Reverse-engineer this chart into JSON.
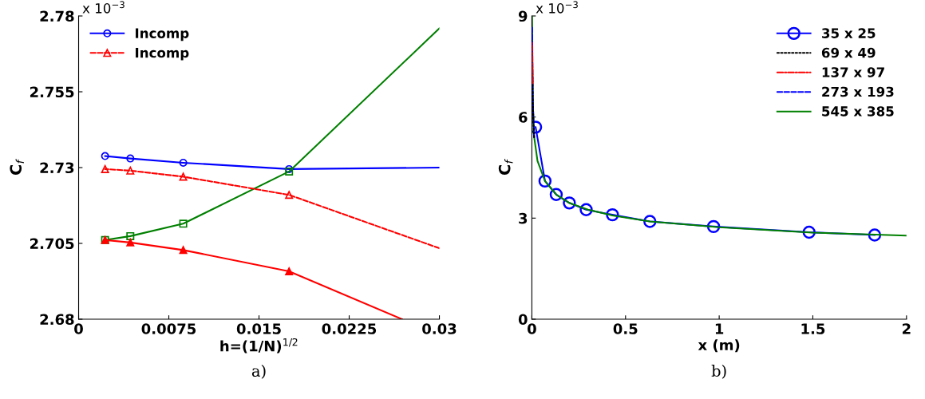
{
  "chart_data": [
    {
      "type": "line",
      "xlabel": "h=(1/N)$^{1/2}$",
      "ylabel": "C$_{f}$",
      "annotations": [
        "x 10$^{−3}$",
        "a)"
      ],
      "xlim": [
        0,
        0.03
      ],
      "xticks": [
        0,
        0.0075,
        0.015,
        0.0225,
        0.03
      ],
      "ylim": [
        2.68,
        2.78
      ],
      "yticks": [
        2.68,
        2.705,
        2.73,
        2.755,
        2.78
      ],
      "grid": false,
      "legend": "top left",
      "series": [
        {
          "name": "Incomp",
          "color": "#0000ff",
          "marker": "circle",
          "line_style": "solid",
          "x": [
            0.0022,
            0.0043,
            0.0087,
            0.0175,
            0.03
          ],
          "values": [
            2.7338,
            2.733,
            2.7316,
            2.7295,
            2.73
          ]
        },
        {
          "name": "Incomp",
          "color": "#ff0000",
          "marker": "triangle",
          "line_style": "dashed",
          "x": [
            0.0022,
            0.0043,
            0.0087,
            0.0175,
            0.03
          ],
          "values": [
            2.7295,
            2.729,
            2.727,
            2.721,
            2.7034
          ]
        },
        {
          "color": "#008000",
          "marker": "square",
          "line_style": "solid",
          "x": [
            0.0022,
            0.0043,
            0.0087,
            0.0175,
            0.03
          ],
          "values": [
            2.7061,
            2.7074,
            2.7115,
            2.7287,
            2.7759
          ]
        },
        {
          "color": "#ff0000",
          "marker": "triangle",
          "line_style": "solid",
          "x": [
            0.0022,
            0.0043,
            0.0087,
            0.0175,
            0.0269
          ],
          "values": [
            2.7061,
            2.7053,
            2.7028,
            2.6958,
            2.68
          ]
        }
      ]
    },
    {
      "type": "line",
      "xlabel": "x (m)",
      "ylabel": "C$_{f}$",
      "annotations": [
        "x 10$^{−3}$",
        "b)"
      ],
      "xlim": [
        0,
        2
      ],
      "xticks": [
        0,
        0.5,
        1,
        1.5,
        2
      ],
      "ylim": [
        0,
        9
      ],
      "yticks": [
        0,
        3,
        6,
        9
      ],
      "grid": false,
      "legend": "top right",
      "series": [
        {
          "name": "35 x 25",
          "color": "#0000ff",
          "marker": "circle",
          "line_style": "solid",
          "x": [
            0.02,
            0.07,
            0.13,
            0.2,
            0.29,
            0.43,
            0.63,
            0.97,
            1.48,
            1.83
          ],
          "values": [
            5.7,
            4.1,
            3.7,
            3.45,
            3.25,
            3.1,
            2.9,
            2.75,
            2.58,
            2.5
          ]
        },
        {
          "name": "69 x 49",
          "color": "#000000",
          "marker": "none",
          "line_style": "dotted",
          "x": [
            0.002,
            0.006,
            0.012
          ],
          "values": [
            7.5,
            6.2,
            5.4
          ]
        },
        {
          "name": "137 x 97",
          "color": "#ff0000",
          "marker": "none",
          "line_style": "dashdot",
          "x": [
            0.001,
            0.004
          ],
          "values": [
            8.2,
            7.0
          ]
        },
        {
          "name": "273 x 193",
          "color": "#0000ff",
          "marker": "none",
          "line_style": "dashed",
          "x": [
            0.001,
            0.005,
            0.012
          ],
          "values": [
            8.7,
            6.5,
            5.4
          ]
        },
        {
          "name": "545 x 385",
          "color": "#008000",
          "marker": "none",
          "line_style": "solid",
          "x": [
            0.001,
            0.005,
            0.01,
            0.03,
            0.07,
            0.13,
            0.2,
            0.3,
            0.43,
            0.63,
            1.0,
            1.5,
            2.0
          ],
          "values": [
            9.0,
            6.5,
            5.5,
            4.7,
            4.1,
            3.7,
            3.45,
            3.25,
            3.08,
            2.9,
            2.73,
            2.57,
            2.48
          ]
        }
      ]
    }
  ]
}
